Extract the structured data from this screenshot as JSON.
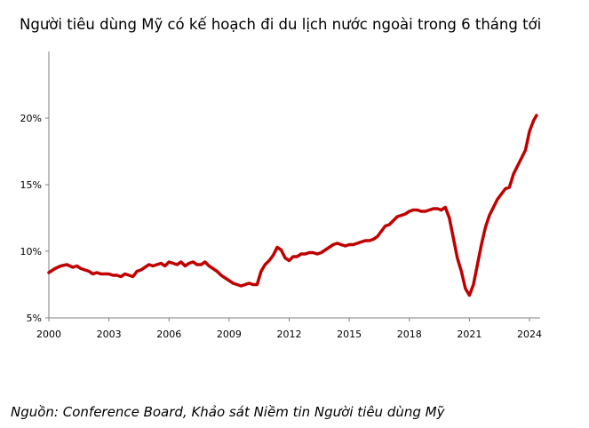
{
  "title": "Người tiêu dùng Mỹ có kế hoạch đi du lịch nước ngoài trong 6 tháng tới",
  "source": "Nguồn: Conference Board, Khảo sát Niềm tin Người tiêu dùng Mỹ",
  "chart_data": {
    "type": "line",
    "title": "Người tiêu dùng Mỹ có kế hoạch đi du lịch nước ngoài trong 6 tháng tới",
    "xlabel": "",
    "ylabel": "",
    "xlim": [
      2000,
      2024.4
    ],
    "ylim": [
      5,
      25
    ],
    "x_ticks": [
      2000,
      2003,
      2006,
      2009,
      2012,
      2015,
      2018,
      2021,
      2024
    ],
    "x_tick_labels": [
      "2000",
      "2003",
      "2006",
      "2009",
      "2012",
      "2015",
      "2018",
      "2021",
      "2024"
    ],
    "y_ticks": [
      5,
      10,
      15,
      20
    ],
    "y_tick_labels": [
      "5%",
      "10%",
      "15%",
      "20%"
    ],
    "grid": false,
    "legend": "none",
    "line_color": "#c00000",
    "series": [
      {
        "x": [
          2000.0,
          2000.3,
          2000.6,
          2000.9,
          2001.2,
          2001.4,
          2001.6,
          2001.8,
          2002.0,
          2002.2,
          2002.4,
          2002.6,
          2002.8,
          2003.0,
          2003.2,
          2003.4,
          2003.6,
          2003.8,
          2004.0,
          2004.2,
          2004.4,
          2004.6,
          2004.8,
          2005.0,
          2005.2,
          2005.4,
          2005.6,
          2005.8,
          2006.0,
          2006.2,
          2006.4,
          2006.6,
          2006.8,
          2007.0,
          2007.2,
          2007.4,
          2007.6,
          2007.8,
          2008.0,
          2008.2,
          2008.4,
          2008.6,
          2008.8,
          2009.0,
          2009.2,
          2009.4,
          2009.6,
          2009.8,
          2010.0,
          2010.2,
          2010.4,
          2010.6,
          2010.8,
          2011.0,
          2011.2,
          2011.4,
          2011.6,
          2011.8,
          2012.0,
          2012.2,
          2012.4,
          2012.6,
          2012.8,
          2013.0,
          2013.2,
          2013.4,
          2013.6,
          2013.8,
          2014.0,
          2014.2,
          2014.4,
          2014.6,
          2014.8,
          2015.0,
          2015.2,
          2015.4,
          2015.6,
          2015.8,
          2016.0,
          2016.2,
          2016.4,
          2016.6,
          2016.8,
          2017.0,
          2017.2,
          2017.4,
          2017.6,
          2017.8,
          2018.0,
          2018.2,
          2018.4,
          2018.6,
          2018.8,
          2019.0,
          2019.2,
          2019.4,
          2019.6,
          2019.8,
          2020.0,
          2020.2,
          2020.4,
          2020.6,
          2020.8,
          2021.0,
          2021.2,
          2021.4,
          2021.6,
          2021.8,
          2022.0,
          2022.2,
          2022.4,
          2022.6,
          2022.8,
          2023.0,
          2023.2,
          2023.4,
          2023.6,
          2023.8,
          2024.0,
          2024.2,
          2024.35
        ],
        "values": [
          8.4,
          8.7,
          8.9,
          9.0,
          8.8,
          8.9,
          8.7,
          8.6,
          8.5,
          8.3,
          8.4,
          8.3,
          8.3,
          8.3,
          8.2,
          8.2,
          8.1,
          8.3,
          8.2,
          8.1,
          8.5,
          8.6,
          8.8,
          9.0,
          8.9,
          9.0,
          9.1,
          8.9,
          9.2,
          9.1,
          9.0,
          9.2,
          8.9,
          9.1,
          9.2,
          9.0,
          9.0,
          9.2,
          8.9,
          8.7,
          8.5,
          8.2,
          8.0,
          7.8,
          7.6,
          7.5,
          7.4,
          7.5,
          7.6,
          7.5,
          7.5,
          8.5,
          9.0,
          9.3,
          9.7,
          10.3,
          10.1,
          9.5,
          9.3,
          9.6,
          9.6,
          9.8,
          9.8,
          9.9,
          9.9,
          9.8,
          9.9,
          10.1,
          10.3,
          10.5,
          10.6,
          10.5,
          10.4,
          10.5,
          10.5,
          10.6,
          10.7,
          10.8,
          10.8,
          10.9,
          11.1,
          11.5,
          11.9,
          12.0,
          12.3,
          12.6,
          12.7,
          12.8,
          13.0,
          13.1,
          13.1,
          13.0,
          13.0,
          13.1,
          13.2,
          13.2,
          13.1,
          13.3,
          12.5,
          11.0,
          9.5,
          8.5,
          7.2,
          6.7,
          7.5,
          9.0,
          10.5,
          11.8,
          12.7,
          13.3,
          13.9,
          14.3,
          14.7,
          14.8,
          15.8,
          16.4,
          17.0,
          17.6,
          19.0,
          19.8,
          20.2
        ]
      }
    ]
  }
}
